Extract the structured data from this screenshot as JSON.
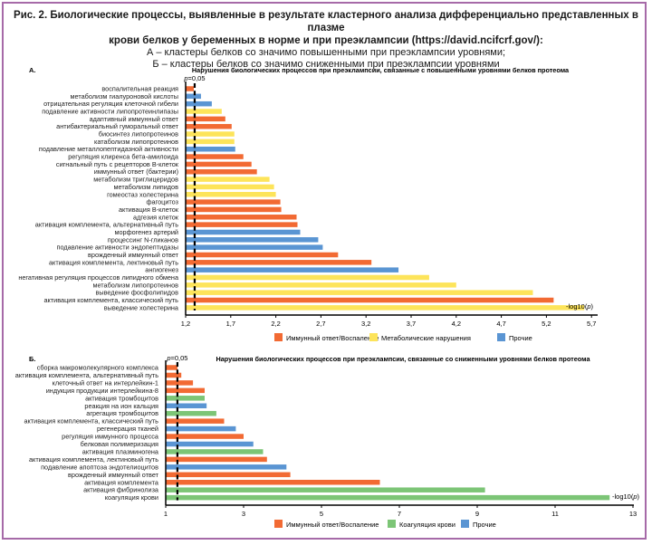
{
  "figure": {
    "caption_bold_1": "Рис. 2. Биологические процессы, выявленные в результате кластерного анализа дифференциально представленных в плазме",
    "caption_bold_2": "крови белков у беременных в норме и при преэклампсии (https://david.ncifcrf.gov/):",
    "caption_line_a": "А – кластеры белков со значимо повышенными при преэклампсии уровнями;",
    "caption_line_b": "Б – кластеры белков со значимо сниженными при преэклампсии уровнями"
  },
  "colors": {
    "immune": "#f26a33",
    "metabolic": "#fde45a",
    "other": "#5a95d3",
    "coagulation": "#7cc576",
    "frame": "#a66aa8"
  },
  "chart_data": [
    {
      "type": "bar",
      "orientation": "horizontal",
      "panel_label": "А.",
      "title": "Нарушения биологических процессов при преэклампсии, связанные с повышенными уровнями белков протеома",
      "xlabel": "-log10(p)",
      "threshold_label": "p=0,05",
      "threshold_value": 1.3,
      "xlim": [
        1.2,
        5.9
      ],
      "xticks": [
        1.2,
        1.7,
        2.2,
        2.7,
        3.2,
        3.7,
        4.2,
        4.7,
        5.2,
        5.7
      ],
      "xtick_labels": [
        "1,2",
        "1,7",
        "2,2",
        "2,7",
        "3,2",
        "3,7",
        "4,2",
        "4,7",
        "5,2",
        "5,7"
      ],
      "legend": [
        {
          "key": "immune",
          "label": "Иммунный ответ/Воспаление"
        },
        {
          "key": "metabolic",
          "label": "Метаболические нарушения"
        },
        {
          "key": "other",
          "label": "Прочие"
        }
      ],
      "legend_position": "bottom",
      "categories": [
        "воспалительная реакция",
        "метаболизм гиалуроновой кислоты",
        "отрицательная регуляция клеточной гибели",
        "подавление активности липопротеинлипазы",
        "адаптивный иммунный ответ",
        "антибактериальный гуморальный ответ",
        "биосинтез липопротеинов",
        "катаболизм липопротеинов",
        "подавление металлопептидазной активности",
        "регуляция клиренса бета-амилоида",
        "сигнальный путь с рецепторов B-клеток",
        "иммунный ответ (бактерии)",
        "метаболизм триглицеридов",
        "метаболизм липидов",
        "гомеостаз холестерина",
        "фагоцитоз",
        "активация B-клеток",
        "адгезия клеток",
        "активация комплемента, альтернативный путь",
        "морфогенез артерий",
        "процессинг N-гликанов",
        "подавление активности эндопептидазы",
        "врожденный иммунный ответ",
        "активация комплемента, лектиновый путь",
        "ангиогенез",
        "негативная регуляция процессов липидного обмена",
        "метаболизм липопротеинов",
        "выведение фосфолипидов",
        "активация комплемента, классический путь",
        "выведение холестерина"
      ],
      "values": [
        1.29,
        1.37,
        1.49,
        1.6,
        1.64,
        1.71,
        1.74,
        1.74,
        1.75,
        1.84,
        1.93,
        1.99,
        2.13,
        2.18,
        2.2,
        2.25,
        2.26,
        2.43,
        2.44,
        2.47,
        2.67,
        2.72,
        2.89,
        3.26,
        3.56,
        3.9,
        4.2,
        5.05,
        5.28,
        5.62
      ],
      "groups": [
        "immune",
        "other",
        "other",
        "metabolic",
        "immune",
        "immune",
        "metabolic",
        "metabolic",
        "other",
        "immune",
        "immune",
        "immune",
        "metabolic",
        "metabolic",
        "metabolic",
        "immune",
        "immune",
        "immune",
        "immune",
        "other",
        "other",
        "other",
        "immune",
        "immune",
        "other",
        "metabolic",
        "metabolic",
        "metabolic",
        "immune",
        "metabolic"
      ]
    },
    {
      "type": "bar",
      "orientation": "horizontal",
      "panel_label": "Б.",
      "title": "Нарушения биологических процессов при преэклампсии, связанные со сниженными уровнями белков протеома",
      "xlabel": "-log10(p)",
      "threshold_label": "p=0,05",
      "threshold_value": 1.3,
      "xlim": [
        1,
        13
      ],
      "xticks": [
        1,
        3,
        5,
        7,
        9,
        11,
        13
      ],
      "xtick_labels": [
        "1",
        "3",
        "5",
        "7",
        "9",
        "11",
        "13"
      ],
      "legend": [
        {
          "key": "immune",
          "label": "Иммунный ответ/Воспаление"
        },
        {
          "key": "coagulation",
          "label": "Коагуляция крови"
        },
        {
          "key": "other",
          "label": "Прочие"
        }
      ],
      "legend_position": "bottom",
      "categories": [
        "сборка макромолекулярного комплекса",
        "активация комплемента, альтернативный путь",
        "клеточный ответ на интерлейкин-1",
        "индукция продукции интерлейкина-8",
        "активация тромбоцитов",
        "реакция на ион кальция",
        "агрегация тромбоцитов",
        "активация комплемента, классический путь",
        "регенерация тканей",
        "регуляция иммунного процесса",
        "белковая полимеризация",
        "активация плазминогена",
        "активация комплемента, лектиновый путь",
        "подавление апоптоза эндотелиоцитов",
        "врожденный иммунный ответ",
        "активация комплемента",
        "активация фибринолиза",
        "коагуляция крови"
      ],
      "values": [
        1.3,
        1.4,
        1.7,
        2.0,
        2.0,
        2.05,
        2.3,
        2.5,
        2.8,
        3.0,
        3.25,
        3.5,
        3.6,
        4.1,
        4.2,
        6.5,
        9.2,
        12.4
      ],
      "groups": [
        "immune",
        "immune",
        "immune",
        "immune",
        "coagulation",
        "other",
        "coagulation",
        "immune",
        "other",
        "immune",
        "other",
        "coagulation",
        "immune",
        "other",
        "immune",
        "immune",
        "coagulation",
        "coagulation"
      ]
    }
  ]
}
